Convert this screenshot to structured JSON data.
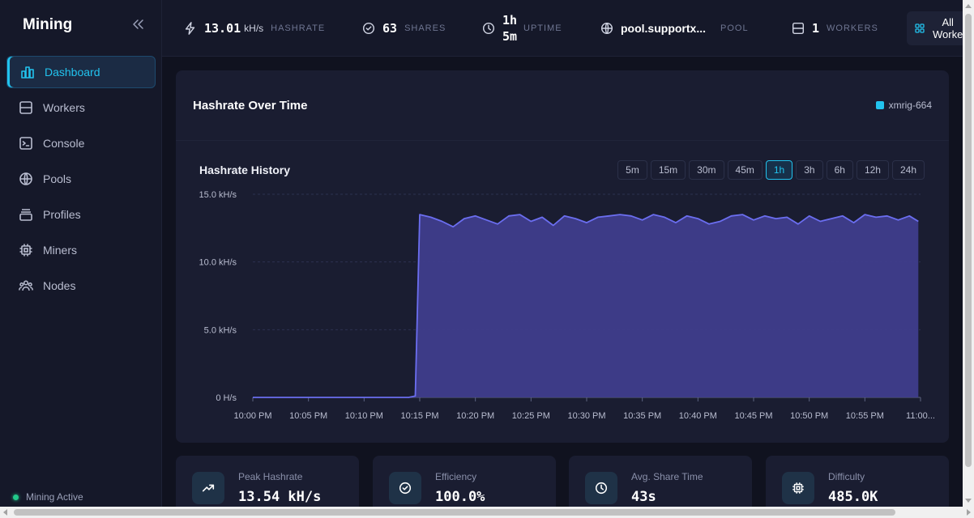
{
  "sidebar": {
    "brand": "Mining",
    "items": [
      {
        "label": "Dashboard",
        "icon": "bar-chart-icon",
        "active": true
      },
      {
        "label": "Workers",
        "icon": "server-icon"
      },
      {
        "label": "Console",
        "icon": "terminal-icon"
      },
      {
        "label": "Pools",
        "icon": "globe-icon"
      },
      {
        "label": "Profiles",
        "icon": "layers-icon"
      },
      {
        "label": "Miners",
        "icon": "cpu-icon"
      },
      {
        "label": "Nodes",
        "icon": "users-icon"
      }
    ],
    "status": "Mining Active"
  },
  "topbar": {
    "hashrate": {
      "value": "13.01",
      "unit": "kH/s",
      "label": "HASHRATE"
    },
    "shares": {
      "value": "63",
      "label": "SHARES"
    },
    "uptime": {
      "value_h": "1h",
      "value_m": "5m",
      "label": "UPTIME"
    },
    "pool": {
      "value": "pool.supportx...",
      "label": "POOL"
    },
    "workers": {
      "value": "1",
      "label": "WORKERS"
    },
    "workers_select": {
      "line1": "All",
      "line2": "Worke"
    }
  },
  "card": {
    "title": "Hashrate Over Time",
    "legend": "xmrig-664",
    "subtitle": "Hashrate History",
    "ranges": [
      "5m",
      "15m",
      "30m",
      "45m",
      "1h",
      "3h",
      "6h",
      "12h",
      "24h"
    ],
    "active_range": "1h"
  },
  "chart_data": {
    "type": "area",
    "title": "Hashrate History",
    "series": [
      {
        "name": "xmrig-664",
        "color": "#6b6ef0"
      }
    ],
    "y_unit": "kH/s",
    "ylim": [
      0,
      15
    ],
    "yticks": [
      "15.0 kH/s",
      "10.0 kH/s",
      "5.0 kH/s",
      "0 H/s"
    ],
    "ytick_values": [
      15,
      10,
      5,
      0
    ],
    "xticks": [
      "10:00 PM",
      "10:05 PM",
      "10:10 PM",
      "10:15 PM",
      "10:20 PM",
      "10:25 PM",
      "10:30 PM",
      "10:35 PM",
      "10:40 PM",
      "10:45 PM",
      "10:50 PM",
      "10:55 PM",
      "11:00..."
    ],
    "x_minutes": [
      0,
      1,
      2,
      3,
      4,
      5,
      6,
      7,
      8,
      9,
      10,
      11,
      12,
      13,
      14,
      14.6,
      15,
      16,
      17,
      18,
      19,
      20,
      21,
      22,
      23,
      24,
      25,
      26,
      27,
      28,
      29,
      30,
      31,
      32,
      33,
      34,
      35,
      36,
      37,
      38,
      39,
      40,
      41,
      42,
      43,
      44,
      45,
      46,
      47,
      48,
      49,
      50,
      51,
      52,
      53,
      54,
      55,
      56,
      57,
      58,
      59,
      59.8
    ],
    "values": [
      0,
      0,
      0,
      0,
      0,
      0,
      0,
      0,
      0,
      0,
      0,
      0,
      0,
      0,
      0,
      0.1,
      13.5,
      13.3,
      13.0,
      12.6,
      13.2,
      13.4,
      13.1,
      12.8,
      13.4,
      13.5,
      13.0,
      13.3,
      12.7,
      13.4,
      13.2,
      12.9,
      13.3,
      13.4,
      13.5,
      13.4,
      13.1,
      13.5,
      13.3,
      12.9,
      13.4,
      13.2,
      12.8,
      13.0,
      13.4,
      13.5,
      13.1,
      13.4,
      13.2,
      13.3,
      12.8,
      13.4,
      13.0,
      13.2,
      13.4,
      12.9,
      13.5,
      13.3,
      13.4,
      13.1,
      13.4,
      13.0
    ],
    "grid": true
  },
  "metrics": [
    {
      "label": "Peak Hashrate",
      "value": "13.54 kH/s",
      "icon": "trending-up-icon"
    },
    {
      "label": "Efficiency",
      "value": "100.0%",
      "icon": "check-circle-icon"
    },
    {
      "label": "Avg. Share Time",
      "value": "43s",
      "icon": "clock-icon"
    },
    {
      "label": "Difficulty",
      "value": "485.0K",
      "icon": "chip-icon"
    }
  ]
}
